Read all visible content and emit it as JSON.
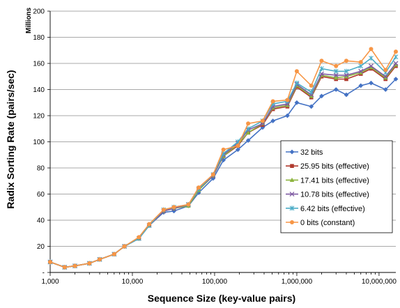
{
  "chart_data": {
    "type": "line",
    "xscale": "log",
    "xlabel": "Sequence Size (key-value pairs)",
    "ylabel": "Radix Sorting Rate (pairs/sec)",
    "yunit": "Millions",
    "ylim": [
      0,
      200
    ],
    "xlim": [
      1000,
      16000000
    ],
    "grid": "horizontal",
    "legend_position": "lower-right",
    "yticks": [
      {
        "v": 0,
        "label": "-"
      },
      {
        "v": 20,
        "label": "20"
      },
      {
        "v": 40,
        "label": "40"
      },
      {
        "v": 60,
        "label": "60"
      },
      {
        "v": 80,
        "label": "80"
      },
      {
        "v": 100,
        "label": "100"
      },
      {
        "v": 120,
        "label": "120"
      },
      {
        "v": 140,
        "label": "140"
      },
      {
        "v": 160,
        "label": "160"
      },
      {
        "v": 180,
        "label": "180"
      },
      {
        "v": 200,
        "label": "200"
      }
    ],
    "xticks": [
      {
        "v": 1000,
        "label": "1,000"
      },
      {
        "v": 10000,
        "label": "10,000"
      },
      {
        "v": 100000,
        "label": "100,000"
      },
      {
        "v": 1000000,
        "label": "1,000,000"
      },
      {
        "v": 10000000,
        "label": "10,000,000"
      }
    ],
    "x": [
      1000,
      1500,
      2000,
      3000,
      4000,
      6000,
      8000,
      12000,
      16000,
      24000,
      32000,
      48000,
      64000,
      96000,
      128000,
      192000,
      256000,
      384000,
      512000,
      768000,
      1000000,
      1500000,
      2000000,
      3000000,
      4000000,
      6000000,
      8000000,
      12000000,
      16000000
    ],
    "series": [
      {
        "name": "32 bits",
        "color": "#4472C4",
        "marker": "diamond",
        "values": [
          8,
          4,
          5,
          7,
          10,
          14,
          20,
          26,
          36,
          46,
          47,
          51,
          61,
          72,
          86,
          94,
          101,
          111,
          116,
          120,
          130,
          127,
          135,
          140,
          136,
          143,
          145,
          140,
          148
        ]
      },
      {
        "name": "25.95 bits (effective)",
        "color": "#B03A2E",
        "marker": "square",
        "values": [
          8,
          4,
          5,
          7,
          10,
          14,
          20,
          26,
          36,
          47,
          49,
          52,
          64,
          74,
          89,
          97,
          107,
          113,
          125,
          127,
          142,
          134,
          150,
          148,
          148,
          152,
          156,
          148,
          158
        ]
      },
      {
        "name": "17.41  bits (effective)",
        "color": "#8DB43E",
        "marker": "triangle",
        "values": [
          8,
          4,
          5,
          7,
          10,
          14,
          20,
          26,
          36,
          47,
          49,
          51,
          63,
          74,
          89,
          98,
          107,
          114,
          126,
          128,
          143,
          135,
          151,
          149,
          150,
          153,
          157,
          149,
          159
        ]
      },
      {
        "name": "10.78 bits (effective)",
        "color": "#7E5AA2",
        "marker": "x",
        "values": [
          8,
          4,
          5,
          7,
          10,
          14,
          20,
          26,
          36,
          47,
          49,
          52,
          64,
          74,
          90,
          99,
          109,
          114,
          127,
          129,
          144,
          136,
          152,
          151,
          151,
          154,
          158,
          150,
          160
        ]
      },
      {
        "name": "6.42 bits (effective)",
        "color": "#4BACC6",
        "marker": "star",
        "values": [
          8,
          4,
          5,
          7,
          10,
          14,
          20,
          26,
          36,
          48,
          50,
          52,
          64,
          75,
          91,
          100,
          110,
          116,
          129,
          131,
          145,
          138,
          156,
          154,
          154,
          158,
          164,
          153,
          165
        ]
      },
      {
        "name": "0 bits (constant)",
        "color": "#F79646",
        "marker": "circle",
        "values": [
          8,
          4,
          5,
          7,
          10,
          14,
          20,
          27,
          37,
          48,
          50,
          52,
          65,
          75,
          94,
          97,
          114,
          116,
          131,
          132,
          154,
          143,
          162,
          158,
          162,
          161,
          171,
          155,
          169
        ]
      }
    ]
  }
}
